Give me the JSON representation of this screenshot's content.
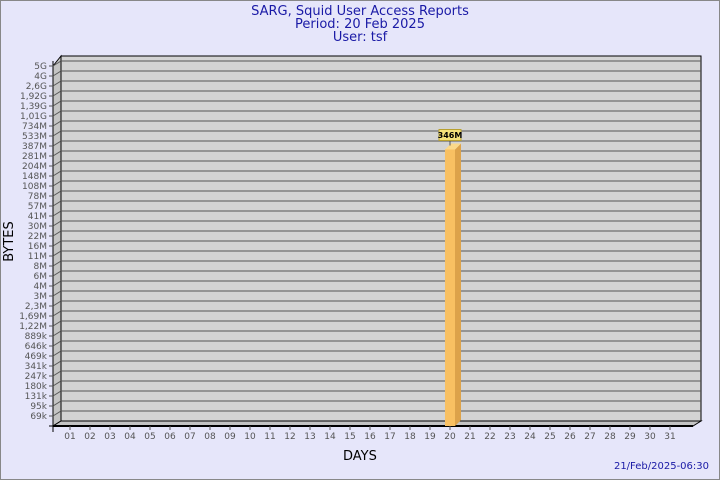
{
  "header": {
    "title": "SARG, Squid User Access Reports",
    "period": "Period: 20 Feb 2025",
    "user": "User: tsf"
  },
  "footer": {
    "timestamp": "21/Feb/2025-06:30"
  },
  "colors": {
    "background": "#e6e6fa",
    "plot": "#d3d3d3",
    "bar": "#f5c060",
    "title": "#1a1aa6"
  },
  "chart_data": {
    "type": "bar",
    "xlabel": "DAYS",
    "ylabel": "BYTES",
    "y_scale": "log",
    "y_tick_labels": [
      "5G",
      "4G",
      "2,6G",
      "1,92G",
      "1,39G",
      "1,01G",
      "734M",
      "533M",
      "387M",
      "281M",
      "204M",
      "148M",
      "108M",
      "78M",
      "57M",
      "41M",
      "30M",
      "22M",
      "16M",
      "11M",
      "8M",
      "6M",
      "4M",
      "3M",
      "2,3M",
      "1,69M",
      "1,22M",
      "889k",
      "646k",
      "469k",
      "341k",
      "247k",
      "180k",
      "131k",
      "95k",
      "69k"
    ],
    "categories": [
      "01",
      "02",
      "03",
      "04",
      "05",
      "06",
      "07",
      "08",
      "09",
      "10",
      "11",
      "12",
      "13",
      "14",
      "15",
      "16",
      "17",
      "18",
      "19",
      "20",
      "21",
      "22",
      "23",
      "24",
      "25",
      "26",
      "27",
      "28",
      "29",
      "30",
      "31"
    ],
    "bars": [
      {
        "category": "20",
        "value": 346000000,
        "label": "346M"
      }
    ],
    "grid": true
  }
}
